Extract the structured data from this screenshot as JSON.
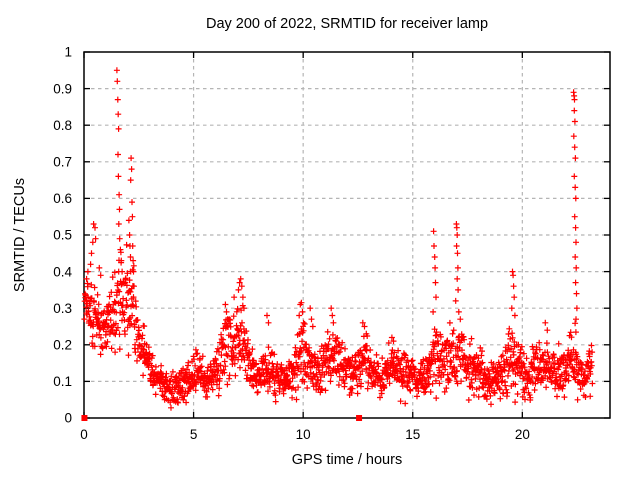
{
  "chart_data": {
    "type": "scatter",
    "title": "Day 200 of 2022, SRMTID for receiver lamp",
    "xlabel": "GPS time / hours",
    "ylabel": "SRMTID / TECUs",
    "xlim": [
      0,
      24
    ],
    "ylim": [
      0,
      1
    ],
    "xtick_values": [
      0,
      5,
      10,
      15,
      20
    ],
    "xtick_labels": [
      "0",
      "5",
      "10",
      "15",
      "20"
    ],
    "ytick_values": [
      0,
      0.1,
      0.2,
      0.3,
      0.4,
      0.5,
      0.6,
      0.7,
      0.8,
      0.9,
      1
    ],
    "ytick_labels": [
      "0",
      "0.1",
      "0.2",
      "0.3",
      "0.4",
      "0.5",
      "0.6",
      "0.7",
      "0.8",
      "0.9",
      "1"
    ],
    "grid": true,
    "legend": "none",
    "marker": {
      "shape": "plus",
      "size": 7,
      "color": "#ff0000"
    },
    "zero_marker": {
      "shape": "filled-square",
      "size": 6,
      "color": "#ff0000"
    },
    "time_range_hours": [
      0.02,
      23.2
    ],
    "baseline_profile_comment": "envelope of dense scatter: [hour, mean SRMTID, half-spread]",
    "baseline_profile": [
      [
        0.0,
        0.28,
        0.09
      ],
      [
        0.3,
        0.27,
        0.08
      ],
      [
        0.6,
        0.25,
        0.08
      ],
      [
        1.0,
        0.25,
        0.07
      ],
      [
        1.3,
        0.27,
        0.09
      ],
      [
        1.6,
        0.3,
        0.13
      ],
      [
        1.9,
        0.33,
        0.13
      ],
      [
        2.2,
        0.3,
        0.12
      ],
      [
        2.5,
        0.22,
        0.08
      ],
      [
        2.8,
        0.17,
        0.06
      ],
      [
        3.1,
        0.12,
        0.05
      ],
      [
        3.5,
        0.1,
        0.04
      ],
      [
        4.0,
        0.08,
        0.04
      ],
      [
        4.5,
        0.09,
        0.05
      ],
      [
        4.8,
        0.11,
        0.06
      ],
      [
        5.2,
        0.12,
        0.05
      ],
      [
        5.6,
        0.1,
        0.04
      ],
      [
        6.0,
        0.12,
        0.05
      ],
      [
        6.4,
        0.17,
        0.08
      ],
      [
        6.7,
        0.19,
        0.08
      ],
      [
        7.0,
        0.22,
        0.09
      ],
      [
        7.3,
        0.2,
        0.09
      ],
      [
        7.6,
        0.13,
        0.05
      ],
      [
        8.0,
        0.11,
        0.05
      ],
      [
        8.4,
        0.14,
        0.06
      ],
      [
        8.8,
        0.11,
        0.05
      ],
      [
        9.2,
        0.1,
        0.04
      ],
      [
        9.6,
        0.13,
        0.06
      ],
      [
        9.9,
        0.18,
        0.08
      ],
      [
        10.2,
        0.16,
        0.08
      ],
      [
        10.6,
        0.12,
        0.05
      ],
      [
        11.0,
        0.14,
        0.06
      ],
      [
        11.3,
        0.18,
        0.08
      ],
      [
        11.7,
        0.15,
        0.06
      ],
      [
        12.0,
        0.13,
        0.05
      ],
      [
        12.4,
        0.12,
        0.05
      ],
      [
        12.8,
        0.16,
        0.07
      ],
      [
        13.2,
        0.12,
        0.05
      ],
      [
        13.6,
        0.11,
        0.05
      ],
      [
        14.0,
        0.14,
        0.06
      ],
      [
        14.4,
        0.12,
        0.05
      ],
      [
        14.8,
        0.13,
        0.06
      ],
      [
        15.2,
        0.09,
        0.04
      ],
      [
        15.6,
        0.12,
        0.06
      ],
      [
        16.0,
        0.2,
        0.1
      ],
      [
        16.4,
        0.14,
        0.06
      ],
      [
        16.8,
        0.16,
        0.08
      ],
      [
        17.1,
        0.18,
        0.09
      ],
      [
        17.5,
        0.13,
        0.06
      ],
      [
        18.0,
        0.13,
        0.06
      ],
      [
        18.5,
        0.1,
        0.05
      ],
      [
        19.0,
        0.11,
        0.05
      ],
      [
        19.5,
        0.17,
        0.09
      ],
      [
        19.8,
        0.14,
        0.07
      ],
      [
        20.2,
        0.1,
        0.05
      ],
      [
        20.6,
        0.14,
        0.06
      ],
      [
        21.0,
        0.15,
        0.06
      ],
      [
        21.5,
        0.12,
        0.05
      ],
      [
        22.0,
        0.13,
        0.06
      ],
      [
        22.4,
        0.18,
        0.08
      ],
      [
        22.8,
        0.1,
        0.05
      ],
      [
        23.2,
        0.14,
        0.05
      ]
    ],
    "peak_points_comment": "explicit outlier / spike points [hour, SRMTID]",
    "peak_points": [
      [
        0.12,
        0.38
      ],
      [
        0.18,
        0.4
      ],
      [
        0.3,
        0.42
      ],
      [
        0.34,
        0.45
      ],
      [
        0.4,
        0.48
      ],
      [
        0.44,
        0.53
      ],
      [
        0.5,
        0.52
      ],
      [
        0.53,
        0.49
      ],
      [
        0.7,
        0.41
      ],
      [
        0.76,
        0.39
      ],
      [
        1.5,
        0.95
      ],
      [
        1.52,
        0.92
      ],
      [
        1.54,
        0.87
      ],
      [
        1.56,
        0.83
      ],
      [
        1.58,
        0.79
      ],
      [
        1.55,
        0.72
      ],
      [
        1.57,
        0.66
      ],
      [
        1.6,
        0.61
      ],
      [
        1.62,
        0.57
      ],
      [
        1.59,
        0.53
      ],
      [
        1.63,
        0.49
      ],
      [
        1.66,
        0.46
      ],
      [
        1.7,
        0.43
      ],
      [
        1.74,
        0.4
      ],
      [
        2.05,
        0.54
      ],
      [
        2.08,
        0.5
      ],
      [
        2.1,
        0.47
      ],
      [
        2.13,
        0.65
      ],
      [
        2.15,
        0.71
      ],
      [
        2.17,
        0.68
      ],
      [
        2.19,
        0.59
      ],
      [
        2.21,
        0.55
      ],
      [
        2.12,
        0.44
      ],
      [
        2.22,
        0.47
      ],
      [
        2.24,
        0.43
      ],
      [
        2.26,
        0.4
      ],
      [
        6.45,
        0.31
      ],
      [
        6.5,
        0.29
      ],
      [
        6.55,
        0.27
      ],
      [
        6.85,
        0.33
      ],
      [
        7.05,
        0.35
      ],
      [
        7.1,
        0.37
      ],
      [
        7.15,
        0.38
      ],
      [
        7.2,
        0.36
      ],
      [
        7.25,
        0.33
      ],
      [
        7.3,
        0.3
      ],
      [
        8.35,
        0.28
      ],
      [
        8.42,
        0.26
      ],
      [
        9.82,
        0.28
      ],
      [
        9.87,
        0.31
      ],
      [
        9.92,
        0.315
      ],
      [
        9.97,
        0.29
      ],
      [
        10.02,
        0.26
      ],
      [
        10.32,
        0.3
      ],
      [
        10.38,
        0.27
      ],
      [
        10.44,
        0.25
      ],
      [
        11.28,
        0.3
      ],
      [
        11.33,
        0.28
      ],
      [
        11.38,
        0.26
      ],
      [
        12.72,
        0.26
      ],
      [
        12.8,
        0.25
      ],
      [
        12.88,
        0.23
      ],
      [
        14.05,
        0.22
      ],
      [
        14.12,
        0.21
      ],
      [
        15.93,
        0.29
      ],
      [
        15.95,
        0.51
      ],
      [
        15.97,
        0.47
      ],
      [
        16.0,
        0.44
      ],
      [
        16.02,
        0.41
      ],
      [
        16.04,
        0.37
      ],
      [
        16.06,
        0.33
      ],
      [
        16.96,
        0.32
      ],
      [
        16.99,
        0.53
      ],
      [
        17.01,
        0.52
      ],
      [
        17.03,
        0.5
      ],
      [
        17.0,
        0.47
      ],
      [
        17.04,
        0.45
      ],
      [
        17.06,
        0.41
      ],
      [
        17.03,
        0.38
      ],
      [
        17.07,
        0.35
      ],
      [
        17.1,
        0.29
      ],
      [
        19.52,
        0.3
      ],
      [
        19.55,
        0.4
      ],
      [
        19.58,
        0.39
      ],
      [
        19.6,
        0.36
      ],
      [
        19.63,
        0.33
      ],
      [
        19.66,
        0.28
      ],
      [
        21.05,
        0.26
      ],
      [
        21.14,
        0.24
      ],
      [
        22.34,
        0.89
      ],
      [
        22.36,
        0.88
      ],
      [
        22.38,
        0.87
      ],
      [
        22.37,
        0.84
      ],
      [
        22.4,
        0.81
      ],
      [
        22.35,
        0.77
      ],
      [
        22.39,
        0.74
      ],
      [
        22.42,
        0.71
      ],
      [
        22.37,
        0.66
      ],
      [
        22.41,
        0.63
      ],
      [
        22.44,
        0.6
      ],
      [
        22.39,
        0.55
      ],
      [
        22.43,
        0.52
      ],
      [
        22.45,
        0.48
      ],
      [
        22.41,
        0.44
      ],
      [
        22.46,
        0.41
      ],
      [
        22.43,
        0.37
      ],
      [
        22.47,
        0.34
      ],
      [
        22.49,
        0.3
      ],
      [
        22.45,
        0.27
      ]
    ],
    "zero_marker_points": [
      [
        0.02,
        0
      ],
      [
        12.55,
        0
      ]
    ],
    "render_hints": {
      "prng_seed": 200,
      "sample_step_hours": 0.0125
    }
  },
  "colors": {
    "points": "#ff0000",
    "grid": "#b5b5b5",
    "axis": "#000000",
    "text": "#000000",
    "background": "#ffffff"
  }
}
